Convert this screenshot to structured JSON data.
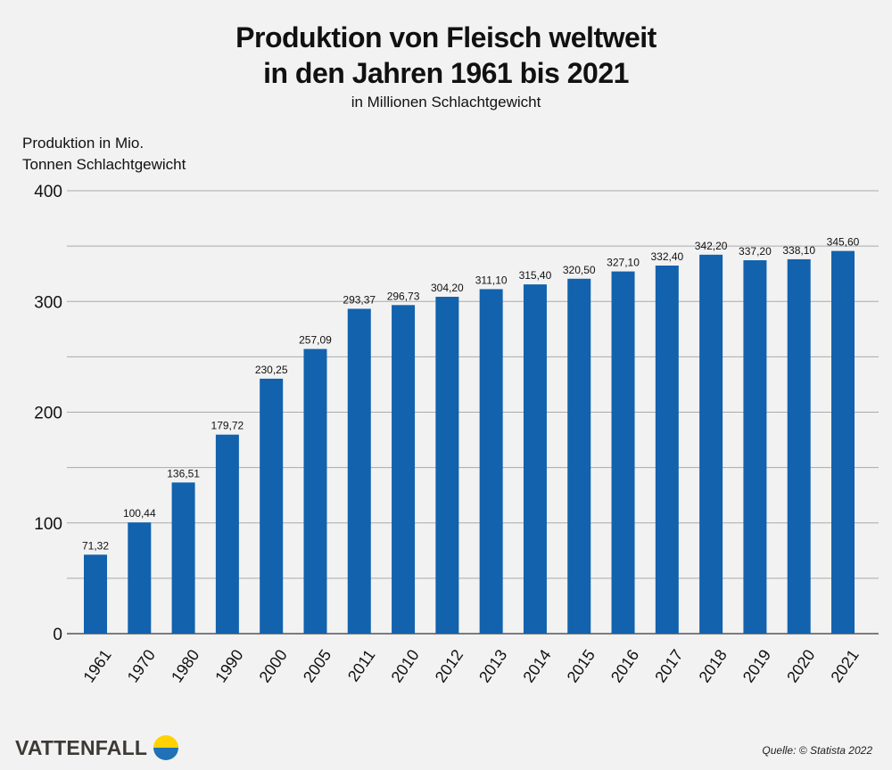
{
  "chart_data": {
    "type": "bar",
    "title": "Produktion von Fleisch weltweit in den Jahren 1961 bis 2021",
    "title_lines": [
      "Produktion von Fleisch weltweit",
      "in den Jahren 1961 bis 2021"
    ],
    "subtitle": "in Millionen Schlachtgewicht",
    "ylabel_lines": [
      "Produktion in Mio.",
      "Tonnen Schlachtgewicht"
    ],
    "xlabel": "",
    "ylim": [
      0,
      400
    ],
    "yticks": [
      0,
      100,
      200,
      300,
      400
    ],
    "grid": true,
    "grid_step": 50,
    "categories": [
      "1961",
      "1970",
      "1980",
      "1990",
      "2000",
      "2005",
      "2011",
      "2010",
      "2012",
      "2013",
      "2014",
      "2015",
      "2016",
      "2017",
      "2018",
      "2019",
      "2020",
      "2021"
    ],
    "values": [
      71.32,
      100.44,
      136.51,
      179.72,
      230.25,
      257.09,
      293.37,
      296.73,
      304.2,
      311.1,
      315.4,
      320.5,
      327.1,
      332.4,
      342.2,
      337.2,
      338.1,
      345.6
    ],
    "data_labels": [
      "71,32",
      "100,44",
      "136,51",
      "179,72",
      "230,25",
      "257,09",
      "293,37",
      "296,73",
      "304,20",
      "311,10",
      "315,40",
      "320,50",
      "327,10",
      "332,40",
      "342,20",
      "337,20",
      "338,10",
      "345,60"
    ],
    "bar_color": "#1262ad"
  },
  "footer": {
    "logo": "VATTENFALL",
    "source": "Quelle: © Statista 2022"
  },
  "colors": {
    "background": "#f2f2f2",
    "logo_yellow": "#ffd200",
    "logo_blue": "#2071b5"
  }
}
